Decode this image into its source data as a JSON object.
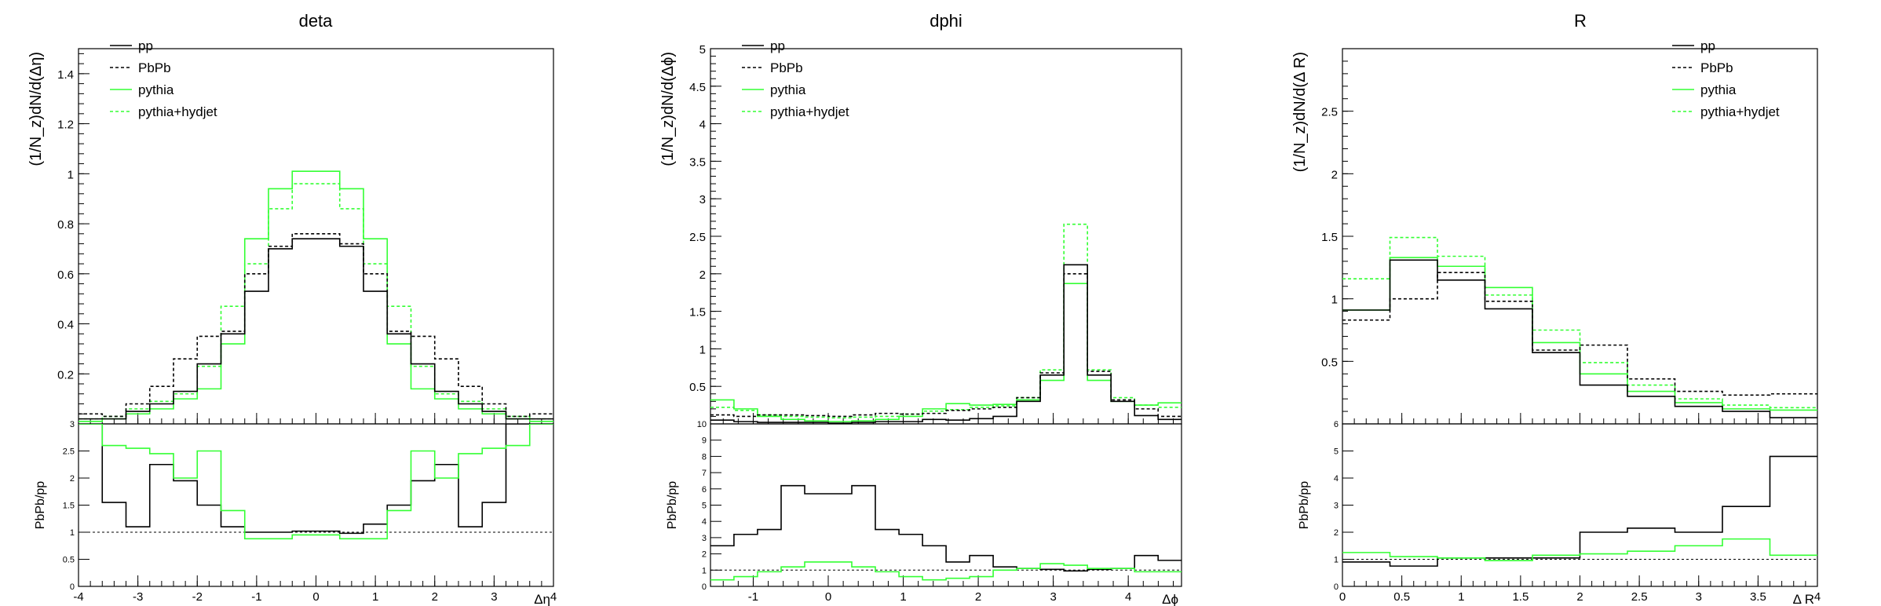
{
  "figure": {
    "background": "#ffffff"
  },
  "legend_entries": [
    {
      "label": "pp",
      "color": "#000000",
      "dash": "solid"
    },
    {
      "label": "PbPb",
      "color": "#000000",
      "dash": "dashed"
    },
    {
      "label": "pythia",
      "color": "#33ff33",
      "dash": "solid"
    },
    {
      "label": "pythia+hydjet",
      "color": "#33ff33",
      "dash": "dashed"
    }
  ],
  "chart_data": [
    {
      "type": "step",
      "title": "deta",
      "ylabel": "(1/N_z)dN/d(Δη)",
      "ratio_ylabel": "PbPb/pp",
      "xlabel": "Δη",
      "xlim": [
        -4,
        4
      ],
      "ylim": [
        0,
        1.5
      ],
      "ratio_ylim": [
        0,
        3
      ],
      "x_ticks": [
        -4,
        -3,
        -2,
        -1,
        0,
        1,
        2,
        3,
        4
      ],
      "y_ticks": [
        0.2,
        0.4,
        0.6,
        0.8,
        1,
        1.2,
        1.4
      ],
      "y_tick_labels": [
        "0.2",
        "0.4",
        "0.6",
        "0.8",
        "1",
        "1.2",
        "1.4"
      ],
      "ratio_ticks": [
        0,
        0.5,
        1,
        1.5,
        2,
        2.5,
        3
      ],
      "ratio_tick_labels": [
        "0",
        "0.5",
        "1",
        "1.5",
        "2",
        "2.5",
        "3"
      ],
      "bin_edges": [
        -4,
        -3.6,
        -3.2,
        -2.8,
        -2.4,
        -2,
        -1.6,
        -1.2,
        -0.8,
        -0.4,
        0,
        0.4,
        0.8,
        1.2,
        1.6,
        2,
        2.4,
        2.8,
        3.2,
        3.6,
        4
      ],
      "series": [
        {
          "name": "pp",
          "values": [
            0.02,
            0.02,
            0.05,
            0.08,
            0.13,
            0.24,
            0.36,
            0.53,
            0.7,
            0.74,
            0.74,
            0.71,
            0.53,
            0.36,
            0.24,
            0.13,
            0.08,
            0.05,
            0.02,
            0.02
          ]
        },
        {
          "name": "PbPb",
          "values": [
            0.04,
            0.03,
            0.08,
            0.15,
            0.26,
            0.35,
            0.37,
            0.6,
            0.71,
            0.76,
            0.76,
            0.72,
            0.6,
            0.37,
            0.35,
            0.26,
            0.15,
            0.08,
            0.03,
            0.04
          ]
        },
        {
          "name": "pythia",
          "values": [
            0.01,
            0.02,
            0.04,
            0.06,
            0.1,
            0.14,
            0.32,
            0.74,
            0.94,
            1.01,
            1.01,
            0.94,
            0.74,
            0.32,
            0.14,
            0.1,
            0.06,
            0.04,
            0.02,
            0.01
          ]
        },
        {
          "name": "pythia+hydjet",
          "values": [
            0.02,
            0.03,
            0.06,
            0.09,
            0.12,
            0.23,
            0.47,
            0.64,
            0.86,
            0.96,
            0.96,
            0.86,
            0.64,
            0.47,
            0.23,
            0.12,
            0.09,
            0.06,
            0.03,
            0.02
          ]
        }
      ],
      "ratio_series": [
        {
          "name": "PbPb/pp",
          "values": [
            3.0,
            1.55,
            1.1,
            2.25,
            1.95,
            1.5,
            1.1,
            1.0,
            1.0,
            1.02,
            1.02,
            0.98,
            1.15,
            1.5,
            1.95,
            2.25,
            1.1,
            1.55,
            3.0,
            3.0
          ]
        },
        {
          "name": "pythia+hydjet/pythia",
          "values": [
            3.0,
            2.6,
            2.55,
            2.45,
            2.0,
            2.5,
            1.4,
            0.88,
            0.88,
            0.95,
            0.95,
            0.88,
            0.88,
            1.4,
            2.5,
            2.0,
            2.45,
            2.55,
            2.6,
            3.0
          ]
        }
      ],
      "ratio_reference": 1
    },
    {
      "type": "step",
      "title": "dphi",
      "ylabel": "(1/N_z)dN/d(Δϕ)",
      "ratio_ylabel": "PbPb/pp",
      "xlabel": "Δϕ",
      "xlim": [
        -1.57,
        4.71
      ],
      "ylim": [
        0,
        5
      ],
      "ratio_ylim": [
        0,
        10
      ],
      "x_ticks": [
        -1,
        0,
        1,
        2,
        3,
        4
      ],
      "y_ticks": [
        0.5,
        1,
        1.5,
        2,
        2.5,
        3,
        3.5,
        4,
        4.5,
        5
      ],
      "y_tick_labels": [
        "0.5",
        "1",
        "1.5",
        "2",
        "2.5",
        "3",
        "3.5",
        "4",
        "4.5",
        "5"
      ],
      "ratio_ticks": [
        0,
        1,
        2,
        3,
        4,
        5,
        6,
        7,
        8,
        9,
        10
      ],
      "ratio_tick_labels": [
        "0",
        "1",
        "2",
        "3",
        "4",
        "5",
        "6",
        "7",
        "8",
        "9",
        "10"
      ],
      "bin_edges": [
        -1.57,
        -1.257,
        -0.943,
        -0.628,
        -0.314,
        0,
        0.314,
        0.628,
        0.943,
        1.257,
        1.571,
        1.885,
        2.199,
        2.513,
        2.827,
        3.142,
        3.456,
        3.77,
        4.084,
        4.398,
        4.71
      ],
      "series": [
        {
          "name": "pp",
          "values": [
            0.05,
            0.03,
            0.02,
            0.02,
            0.02,
            0.01,
            0.02,
            0.03,
            0.03,
            0.06,
            0.05,
            0.07,
            0.1,
            0.3,
            0.65,
            2.12,
            0.65,
            0.3,
            0.11,
            0.06
          ]
        },
        {
          "name": "PbPb",
          "values": [
            0.12,
            0.1,
            0.12,
            0.12,
            0.11,
            0.1,
            0.12,
            0.14,
            0.13,
            0.14,
            0.18,
            0.2,
            0.22,
            0.35,
            0.68,
            2.0,
            0.7,
            0.32,
            0.2,
            0.1
          ]
        },
        {
          "name": "pythia",
          "values": [
            0.32,
            0.2,
            0.1,
            0.06,
            0.04,
            0.03,
            0.04,
            0.06,
            0.1,
            0.2,
            0.27,
            0.25,
            0.26,
            0.32,
            0.58,
            1.87,
            0.58,
            0.3,
            0.25,
            0.28
          ]
        },
        {
          "name": "pythia+hydjet",
          "values": [
            0.22,
            0.18,
            0.12,
            0.1,
            0.09,
            0.08,
            0.09,
            0.1,
            0.13,
            0.17,
            0.19,
            0.22,
            0.24,
            0.35,
            0.72,
            2.66,
            0.72,
            0.35,
            0.25,
            0.22
          ]
        }
      ],
      "ratio_series": [
        {
          "name": "PbPb/pp",
          "values": [
            2.5,
            3.2,
            3.5,
            6.2,
            5.7,
            5.7,
            6.2,
            3.5,
            3.2,
            2.5,
            1.5,
            1.9,
            1.2,
            1.1,
            1.05,
            0.95,
            1.05,
            1.1,
            1.9,
            1.6
          ]
        },
        {
          "name": "pythia+hydjet/pythia",
          "values": [
            0.4,
            0.6,
            0.9,
            1.2,
            1.5,
            1.5,
            1.2,
            0.9,
            0.6,
            0.4,
            0.5,
            0.6,
            1.0,
            1.1,
            1.4,
            1.3,
            1.1,
            1.1,
            0.9,
            0.9
          ]
        }
      ],
      "ratio_reference": 1
    },
    {
      "type": "step",
      "title": "R",
      "ylabel": "(1/N_z)dN/d(Δ R)",
      "ratio_ylabel": "PbPb/pp",
      "xlabel": "Δ R",
      "xlim": [
        0,
        4
      ],
      "ylim": [
        0,
        3
      ],
      "ratio_ylim": [
        0,
        6
      ],
      "x_ticks": [
        0,
        0.5,
        1,
        1.5,
        2,
        2.5,
        3,
        3.5,
        4
      ],
      "y_ticks": [
        0.5,
        1,
        1.5,
        2,
        2.5
      ],
      "y_tick_labels": [
        "0.5",
        "1",
        "1.5",
        "2",
        "2.5"
      ],
      "ratio_ticks": [
        0,
        1,
        2,
        3,
        4,
        5,
        6
      ],
      "ratio_tick_labels": [
        "0",
        "1",
        "2",
        "3",
        "4",
        "5",
        "6"
      ],
      "bin_edges": [
        0,
        0.4,
        0.8,
        1.2,
        1.6,
        2,
        2.4,
        2.8,
        3.2,
        3.6,
        4
      ],
      "series": [
        {
          "name": "pp",
          "values": [
            0.91,
            1.31,
            1.15,
            0.92,
            0.57,
            0.31,
            0.22,
            0.14,
            0.1,
            0.05
          ]
        },
        {
          "name": "PbPb",
          "values": [
            0.83,
            1.0,
            1.21,
            0.98,
            0.59,
            0.63,
            0.36,
            0.26,
            0.23,
            0.24
          ]
        },
        {
          "name": "pythia",
          "values": [
            0.91,
            1.33,
            1.26,
            1.09,
            0.65,
            0.4,
            0.26,
            0.17,
            0.12,
            0.11
          ]
        },
        {
          "name": "pythia+hydjet",
          "values": [
            1.16,
            1.49,
            1.34,
            1.03,
            0.75,
            0.49,
            0.31,
            0.2,
            0.15,
            0.13
          ]
        }
      ],
      "ratio_series": [
        {
          "name": "PbPb/pp",
          "values": [
            0.9,
            0.75,
            1.05,
            1.05,
            1.05,
            2.0,
            2.15,
            2.0,
            2.95,
            4.8
          ]
        },
        {
          "name": "pythia+hydjet/pythia",
          "values": [
            1.25,
            1.1,
            1.05,
            0.95,
            1.15,
            1.2,
            1.3,
            1.5,
            1.75,
            1.15
          ]
        }
      ],
      "ratio_reference": 1
    }
  ]
}
